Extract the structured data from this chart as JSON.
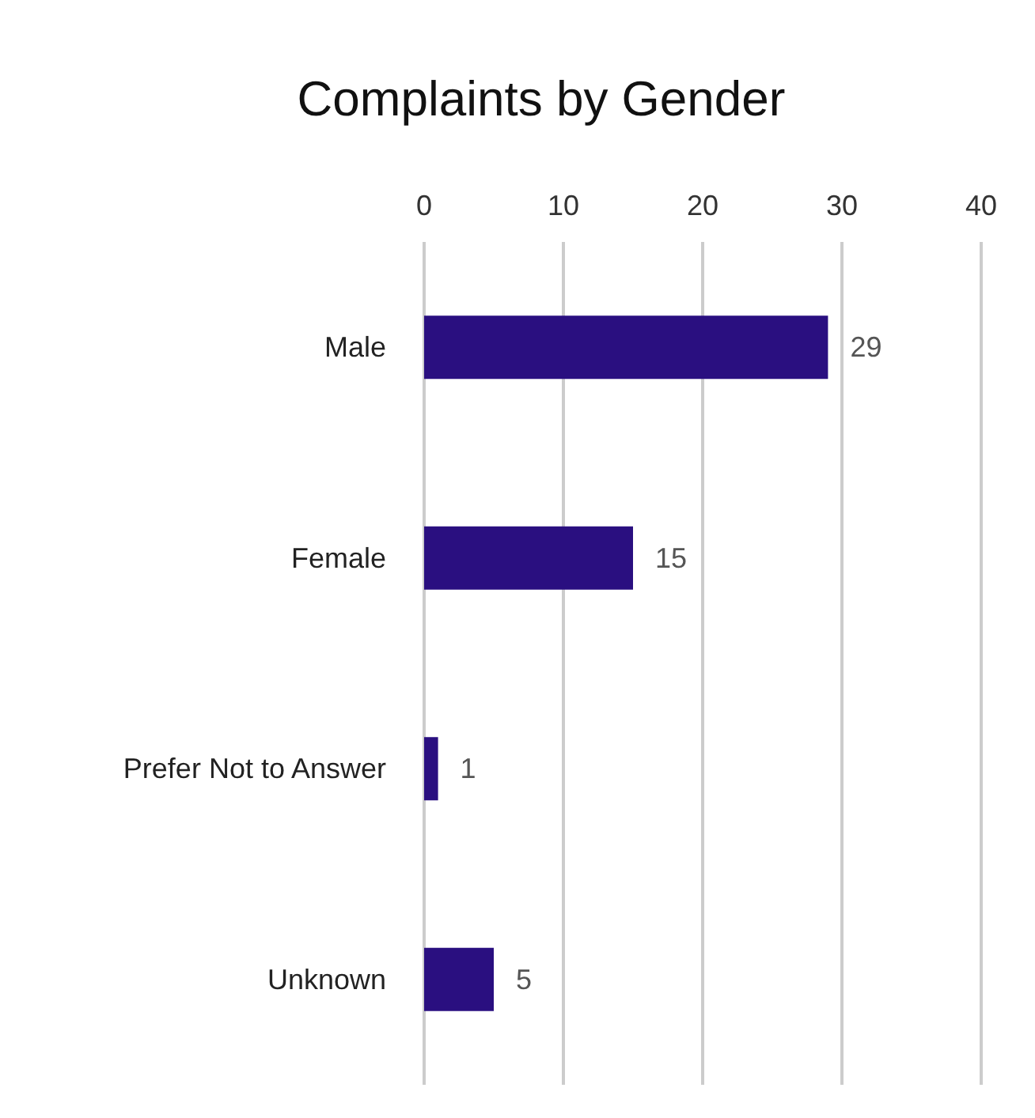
{
  "chart_data": {
    "type": "bar",
    "orientation": "horizontal",
    "title": "Complaints by Gender",
    "categories": [
      "Male",
      "Female",
      "Prefer Not to Answer",
      "Unknown"
    ],
    "values": [
      29,
      15,
      1,
      5
    ],
    "color": "#2a0f80",
    "xlim": [
      0,
      40
    ],
    "xticks": [
      0,
      10,
      20,
      30,
      40
    ],
    "grid": "x",
    "data_labels": true
  }
}
